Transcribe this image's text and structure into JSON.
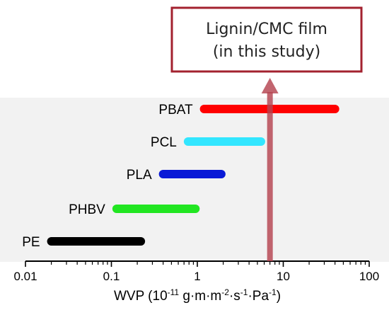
{
  "chart_data": {
    "type": "range-bar",
    "scale": "log",
    "xlim": [
      0.01,
      100
    ],
    "tick_values": [
      0.01,
      0.1,
      1,
      10,
      100
    ],
    "tick_labels": [
      "0.01",
      "0.1",
      "1",
      "10",
      "100"
    ],
    "xlabel": {
      "prefix": "WVP (10",
      "exp1": "-11",
      "mid1": " g·m·m",
      "exp2": "-2",
      "mid2": "·s",
      "exp3": "-1",
      "mid3": "·Pa",
      "exp4": "-1",
      "suffix": ")"
    },
    "ranges": [
      {
        "label": "PBAT",
        "min": 1.2,
        "max": 40,
        "color": "#ff0000"
      },
      {
        "label": "PCL",
        "min": 0.78,
        "max": 5.5,
        "color": "#33e6ff"
      },
      {
        "label": "PLA",
        "min": 0.4,
        "max": 1.9,
        "color": "#0a1ad6"
      },
      {
        "label": "PHBV",
        "min": 0.115,
        "max": 0.95,
        "color": "#22e622"
      },
      {
        "label": "PE",
        "min": 0.02,
        "max": 0.22,
        "color": "#000000"
      }
    ],
    "marker": {
      "x": 7,
      "color": "#b5434f",
      "label_lines": [
        "Lignin/CMC film",
        "(in this study)"
      ],
      "box_border_color": "#a3222f"
    }
  }
}
